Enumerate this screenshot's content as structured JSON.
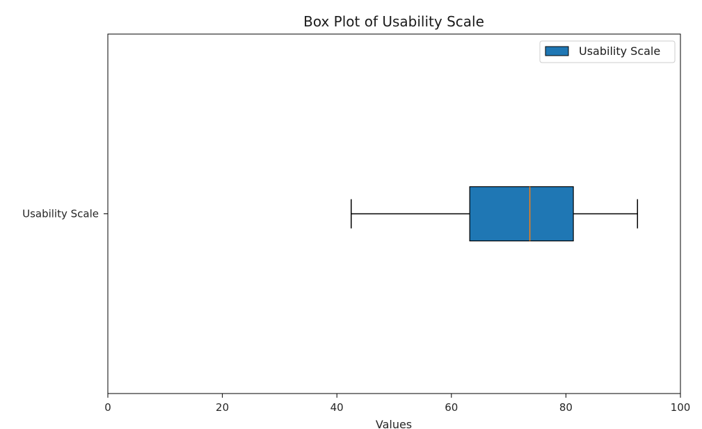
{
  "chart_data": {
    "type": "boxplot",
    "orientation": "horizontal",
    "title": "Box Plot of Usability Scale",
    "xlabel": "Values",
    "ylabel": "",
    "xlim": [
      0,
      100
    ],
    "x_ticks": [
      0,
      20,
      40,
      60,
      80,
      100
    ],
    "categories": [
      "Usability Scale"
    ],
    "series": [
      {
        "name": "Usability Scale",
        "whisker_low": 42.5,
        "q1": 63.2,
        "median": 73.7,
        "q3": 81.3,
        "whisker_high": 92.5
      }
    ],
    "legend": {
      "position": "top-right",
      "entries": [
        "Usability Scale"
      ]
    },
    "grid": false,
    "colors": {
      "box_fill": "#1f77b4",
      "median": "#ff7f0e",
      "edge": "#000000"
    }
  }
}
